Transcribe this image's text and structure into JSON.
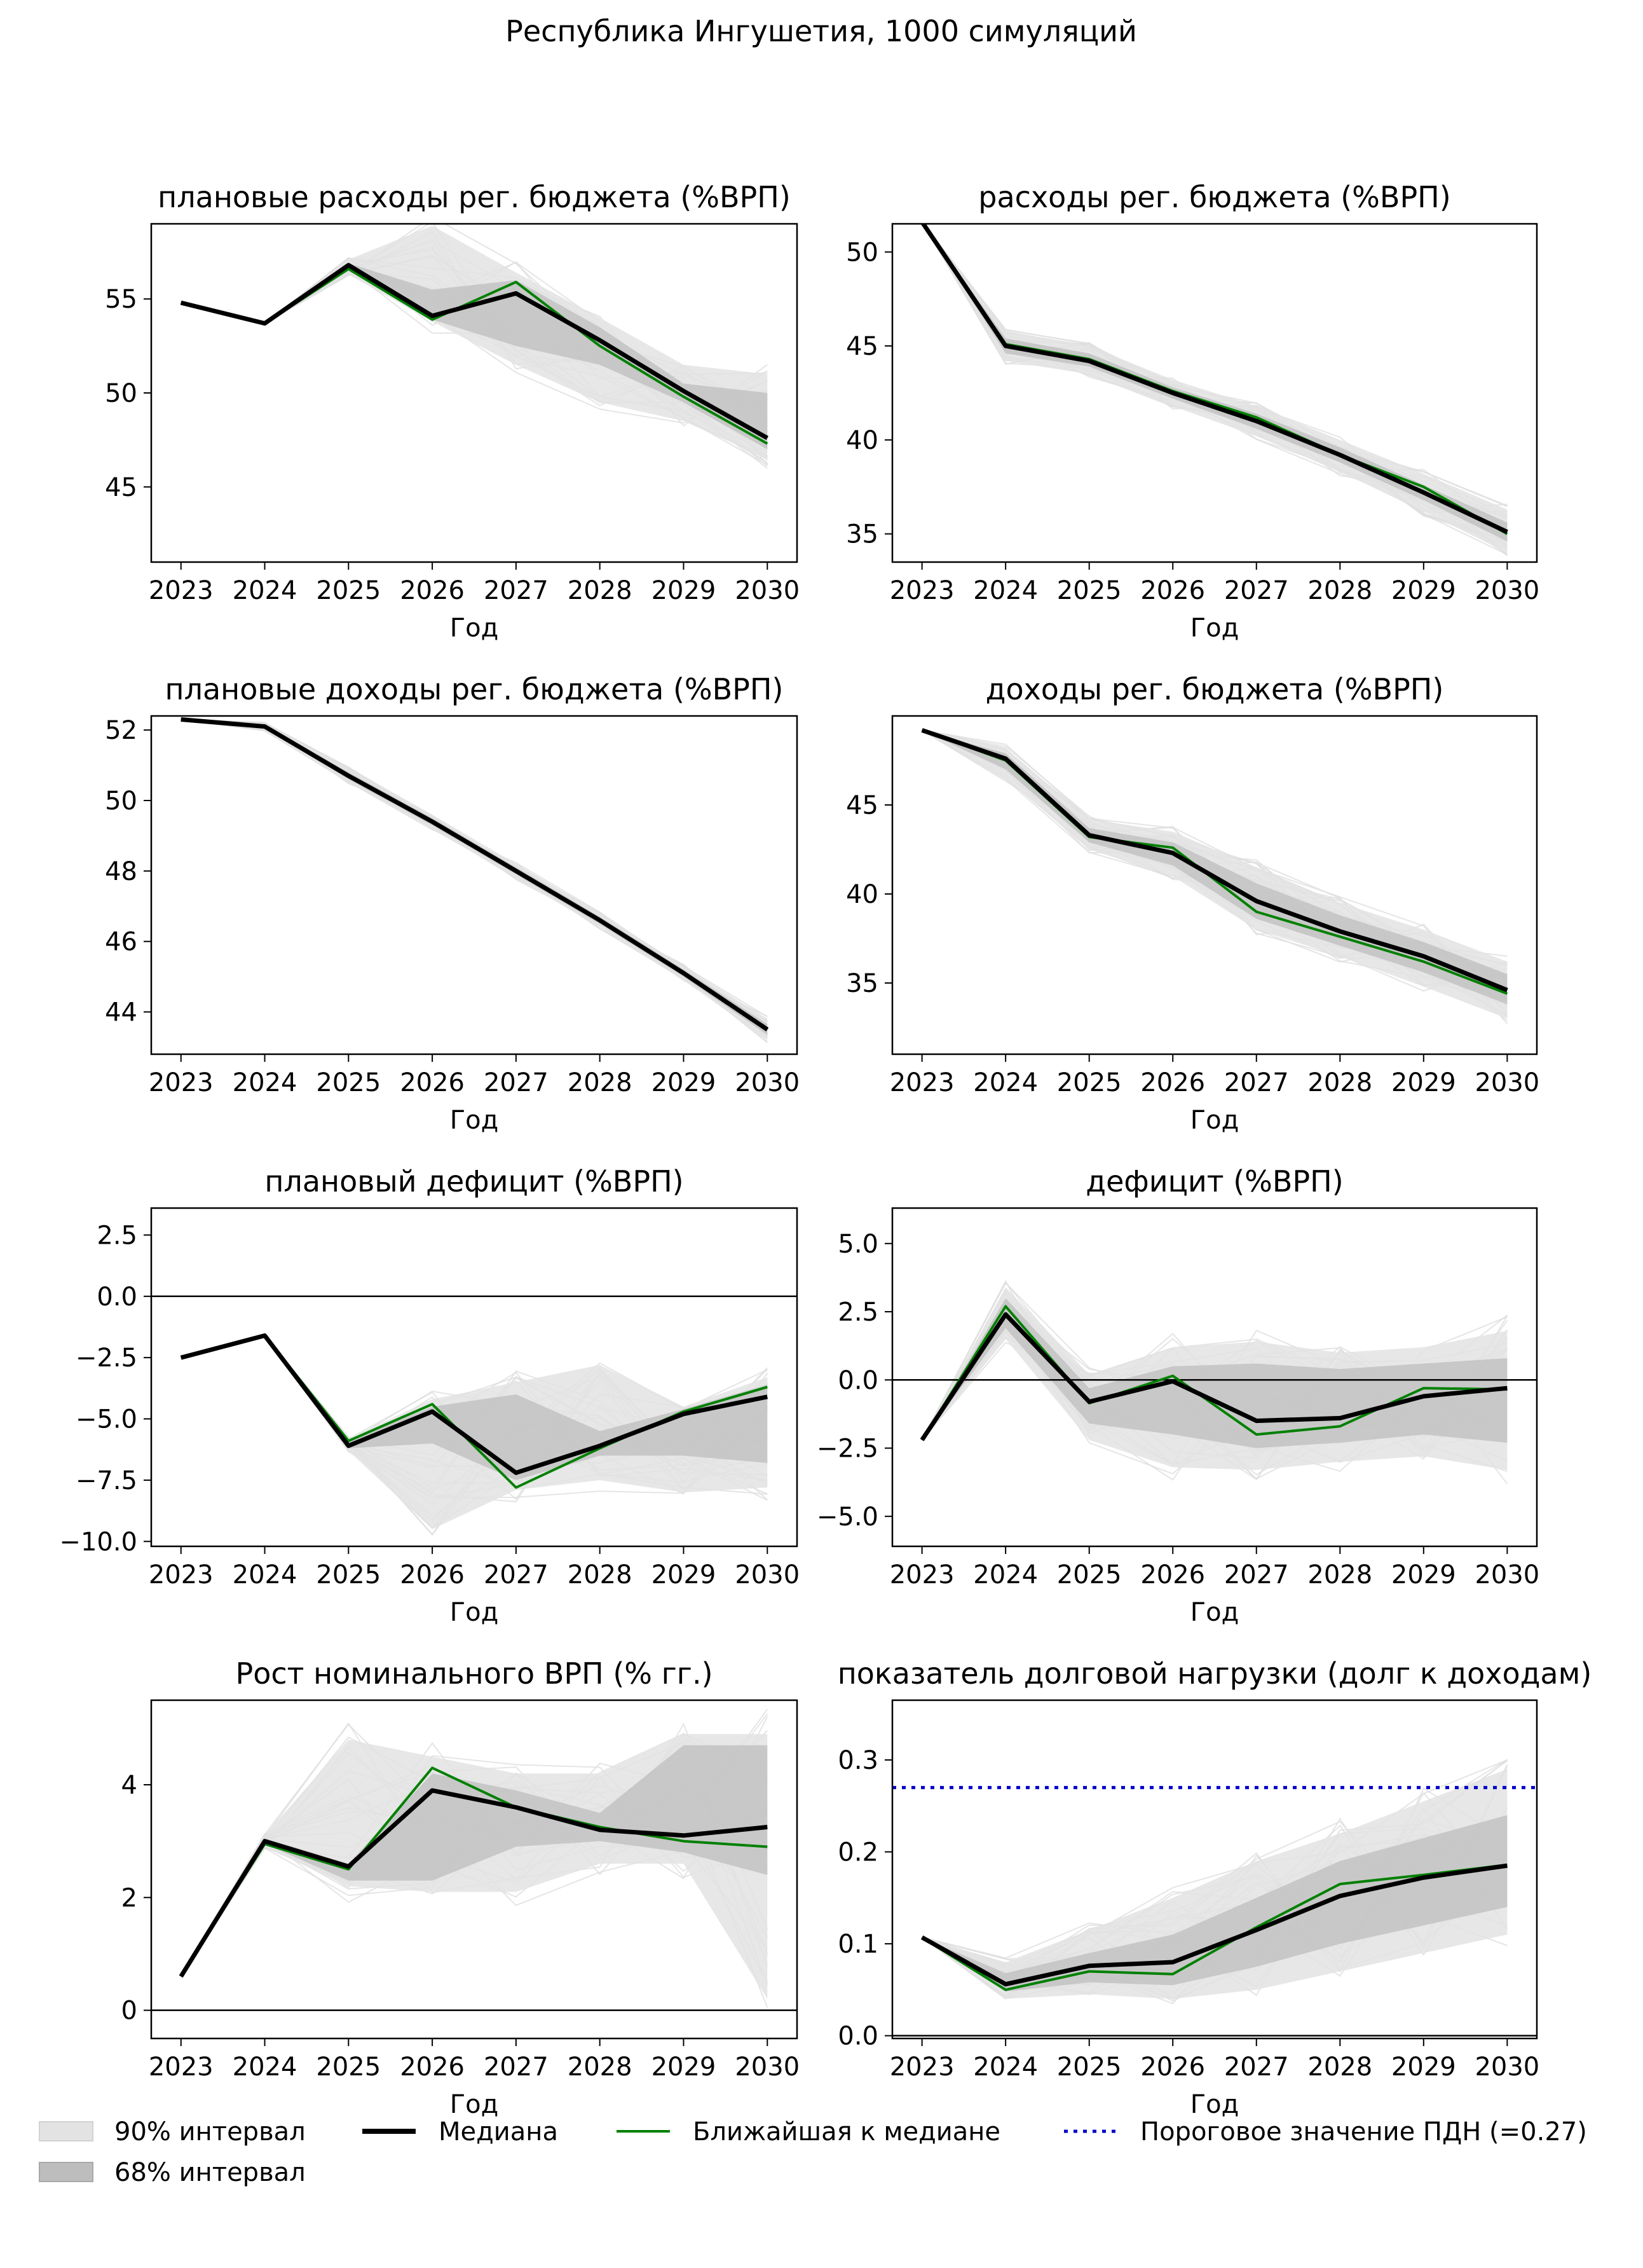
{
  "figure": {
    "suptitle": "Республика Ингушетия, 1000 симуляций"
  },
  "legend": {
    "band90": "90% интервал",
    "band68": "68% интервал",
    "median": "Медиана",
    "closest": "Ближайшая к медиане",
    "threshold": "Пороговое значение ПДН (=0.27)"
  },
  "colors": {
    "median": "#000000",
    "closest": "#008000",
    "threshold": "#0000cc",
    "band90": "#e3e3e3",
    "band68": "#bdbdbd",
    "sims": "#dedede"
  },
  "chart_data": [
    {
      "type": "line",
      "title": "плановые расходы рег. бюджета (%ВРП)",
      "xlabel": "Год",
      "x": [
        2023,
        2024,
        2025,
        2026,
        2027,
        2028,
        2029,
        2030
      ],
      "ylim": [
        41,
        59
      ],
      "yticks": [
        45,
        50,
        55
      ],
      "median": [
        54.8,
        53.7,
        56.8,
        54.1,
        55.3,
        52.8,
        50.1,
        47.6
      ],
      "closest": [
        54.8,
        53.7,
        56.6,
        53.9,
        55.9,
        52.5,
        49.8,
        47.3
      ],
      "band90_low": [
        54.8,
        53.7,
        56.3,
        53.8,
        51.5,
        49.5,
        48.5,
        46.5
      ],
      "band90_high": [
        54.8,
        53.7,
        57.1,
        58.9,
        56.4,
        54.0,
        51.5,
        51.0
      ],
      "band68_low": [
        54.8,
        53.7,
        56.5,
        53.9,
        52.5,
        51.5,
        49.5,
        47.0
      ],
      "band68_high": [
        54.8,
        53.7,
        56.9,
        55.5,
        56.0,
        53.5,
        50.5,
        50.0
      ]
    },
    {
      "type": "line",
      "title": "расходы рег. бюджета (%ВРП)",
      "xlabel": "Год",
      "x": [
        2023,
        2024,
        2025,
        2026,
        2027,
        2028,
        2029,
        2030
      ],
      "ylim": [
        33.5,
        51.5
      ],
      "yticks": [
        35,
        40,
        45,
        50
      ],
      "median": [
        51.6,
        45.0,
        44.2,
        42.5,
        41.0,
        39.2,
        37.2,
        35.1
      ],
      "closest": [
        51.6,
        45.1,
        44.3,
        42.6,
        41.2,
        39.2,
        37.5,
        35.0
      ],
      "band90_low": [
        51.6,
        44.2,
        43.5,
        41.8,
        40.2,
        38.3,
        36.2,
        34.0
      ],
      "band90_high": [
        51.6,
        45.8,
        45.0,
        43.2,
        41.8,
        40.0,
        38.2,
        36.3
      ],
      "band68_low": [
        51.6,
        44.6,
        43.9,
        42.2,
        40.6,
        38.8,
        36.8,
        34.6
      ],
      "band68_high": [
        51.6,
        45.4,
        44.6,
        42.8,
        41.4,
        39.6,
        37.6,
        35.6
      ]
    },
    {
      "type": "line",
      "title": "плановые доходы рег. бюджета (%ВРП)",
      "xlabel": "Год",
      "x": [
        2023,
        2024,
        2025,
        2026,
        2027,
        2028,
        2029,
        2030
      ],
      "ylim": [
        42.8,
        52.4
      ],
      "yticks": [
        44,
        46,
        48,
        50,
        52
      ],
      "median": [
        52.3,
        52.1,
        50.7,
        49.4,
        48.0,
        46.6,
        45.1,
        43.5
      ],
      "closest": [
        52.3,
        52.1,
        50.7,
        49.4,
        48.0,
        46.6,
        45.1,
        43.5
      ],
      "band90_low": [
        52.3,
        52.0,
        50.5,
        49.2,
        47.8,
        46.4,
        44.9,
        43.2
      ],
      "band90_high": [
        52.3,
        52.2,
        50.9,
        49.6,
        48.2,
        46.8,
        45.3,
        43.8
      ],
      "band68_low": [
        52.3,
        52.05,
        50.6,
        49.3,
        47.9,
        46.5,
        45.0,
        43.35
      ],
      "band68_high": [
        52.3,
        52.15,
        50.8,
        49.5,
        48.1,
        46.7,
        45.2,
        43.65
      ]
    },
    {
      "type": "line",
      "title": "доходы рег. бюджета (%ВРП)",
      "xlabel": "Год",
      "x": [
        2023,
        2024,
        2025,
        2026,
        2027,
        2028,
        2029,
        2030
      ],
      "ylim": [
        31,
        50
      ],
      "yticks": [
        35,
        40,
        45
      ],
      "median": [
        49.2,
        47.6,
        43.3,
        42.3,
        39.6,
        37.9,
        36.5,
        34.6
      ],
      "closest": [
        49.2,
        47.5,
        43.2,
        42.6,
        39.0,
        37.6,
        36.2,
        34.4
      ],
      "band90_low": [
        49.2,
        46.5,
        42.5,
        41.0,
        38.0,
        36.5,
        34.8,
        33.0
      ],
      "band90_high": [
        49.2,
        48.2,
        44.2,
        43.5,
        41.5,
        39.5,
        38.0,
        36.2
      ],
      "band68_low": [
        49.2,
        47.0,
        42.9,
        41.6,
        38.6,
        37.1,
        35.6,
        33.8
      ],
      "band68_high": [
        49.2,
        47.9,
        43.7,
        42.9,
        40.6,
        38.8,
        37.3,
        35.5
      ]
    },
    {
      "type": "line",
      "title": "плановый дефицит (%ВРП)",
      "xlabel": "Год",
      "x": [
        2023,
        2024,
        2025,
        2026,
        2027,
        2028,
        2029,
        2030
      ],
      "ylim": [
        -10.2,
        3.6
      ],
      "yticks": [
        -10.0,
        -7.5,
        -5.0,
        -2.5,
        0.0,
        2.5
      ],
      "yticklabels": [
        "−10.0",
        "−7.5",
        "−5.0",
        "−2.5",
        "0.0",
        "2.5"
      ],
      "hline": 0,
      "median": [
        -2.5,
        -1.6,
        -6.1,
        -4.7,
        -7.2,
        -6.1,
        -4.8,
        -4.1
      ],
      "closest": [
        -2.5,
        -1.6,
        -5.9,
        -4.4,
        -7.8,
        -6.2,
        -4.7,
        -3.7
      ],
      "band90_low": [
        -2.5,
        -1.6,
        -6.3,
        -9.5,
        -7.9,
        -7.5,
        -8.0,
        -7.8
      ],
      "band90_high": [
        -2.5,
        -1.6,
        -5.8,
        -4.2,
        -3.5,
        -2.8,
        -4.5,
        -3.3
      ],
      "band68_low": [
        -2.5,
        -1.6,
        -6.2,
        -6.0,
        -7.5,
        -6.5,
        -6.5,
        -6.8
      ],
      "band68_high": [
        -2.5,
        -1.6,
        -5.9,
        -4.5,
        -4.0,
        -5.5,
        -4.6,
        -3.6
      ]
    },
    {
      "type": "line",
      "title": "дефицит (%ВРП)",
      "xlabel": "Год",
      "x": [
        2023,
        2024,
        2025,
        2026,
        2027,
        2028,
        2029,
        2030
      ],
      "ylim": [
        -6.1,
        6.3
      ],
      "yticks": [
        -5.0,
        -2.5,
        0.0,
        2.5,
        5.0
      ],
      "yticklabels": [
        "−5.0",
        "−2.5",
        "0.0",
        "2.5",
        "5.0"
      ],
      "hline": 0,
      "median": [
        -2.2,
        2.4,
        -0.8,
        -0.05,
        -1.5,
        -1.4,
        -0.6,
        -0.3
      ],
      "closest": [
        -2.2,
        2.7,
        -0.85,
        0.15,
        -2.0,
        -1.7,
        -0.3,
        -0.35
      ],
      "band90_low": [
        -2.2,
        1.5,
        -2.2,
        -3.2,
        -3.3,
        -3.0,
        -2.8,
        -3.3
      ],
      "band90_high": [
        -2.2,
        3.4,
        0.2,
        1.2,
        1.4,
        1.0,
        1.2,
        1.8
      ],
      "band68_low": [
        -2.2,
        1.9,
        -1.6,
        -2.0,
        -2.5,
        -2.3,
        -2.0,
        -2.3
      ],
      "band68_high": [
        -2.2,
        3.0,
        -0.3,
        0.5,
        0.6,
        0.4,
        0.6,
        0.8
      ]
    },
    {
      "type": "line",
      "title": "Рост номинального ВРП (% гг.)",
      "xlabel": "Год",
      "x": [
        2023,
        2024,
        2025,
        2026,
        2027,
        2028,
        2029,
        2030
      ],
      "ylim": [
        -0.5,
        5.5
      ],
      "yticks": [
        0,
        2,
        4
      ],
      "hline": 0,
      "median": [
        0.6,
        3.0,
        2.55,
        3.9,
        3.6,
        3.2,
        3.1,
        3.25
      ],
      "closest": [
        0.6,
        2.95,
        2.5,
        4.3,
        3.6,
        3.25,
        3.0,
        2.9
      ],
      "band90_low": [
        0.6,
        2.9,
        2.2,
        2.1,
        2.1,
        2.6,
        2.6,
        0.2
      ],
      "band90_high": [
        0.6,
        3.1,
        4.8,
        4.5,
        4.2,
        4.2,
        4.9,
        4.9
      ],
      "band68_low": [
        0.6,
        2.95,
        2.3,
        2.3,
        2.9,
        3.0,
        2.8,
        2.4
      ],
      "band68_high": [
        0.6,
        3.05,
        2.6,
        4.2,
        3.9,
        3.5,
        4.7,
        4.7
      ]
    },
    {
      "type": "line",
      "title": "показатель долговой нагрузки (долг к доходам)",
      "xlabel": "Год",
      "x": [
        2023,
        2024,
        2025,
        2026,
        2027,
        2028,
        2029,
        2030
      ],
      "ylim": [
        -0.003,
        0.365
      ],
      "yticks": [
        0.0,
        0.1,
        0.2,
        0.3
      ],
      "yticklabels": [
        "0.0",
        "0.1",
        "0.2",
        "0.3"
      ],
      "hline": 0,
      "threshold": 0.27,
      "median": [
        0.107,
        0.056,
        0.076,
        0.08,
        0.115,
        0.152,
        0.172,
        0.185
      ],
      "closest": [
        0.107,
        0.05,
        0.07,
        0.067,
        0.118,
        0.165,
        0.175,
        0.186
      ],
      "band90_low": [
        0.107,
        0.04,
        0.045,
        0.04,
        0.05,
        0.07,
        0.09,
        0.11
      ],
      "band90_high": [
        0.107,
        0.08,
        0.115,
        0.15,
        0.19,
        0.22,
        0.255,
        0.29
      ],
      "band68_low": [
        0.107,
        0.048,
        0.058,
        0.055,
        0.075,
        0.1,
        0.12,
        0.14
      ],
      "band68_high": [
        0.107,
        0.068,
        0.09,
        0.11,
        0.15,
        0.19,
        0.215,
        0.24
      ]
    }
  ]
}
